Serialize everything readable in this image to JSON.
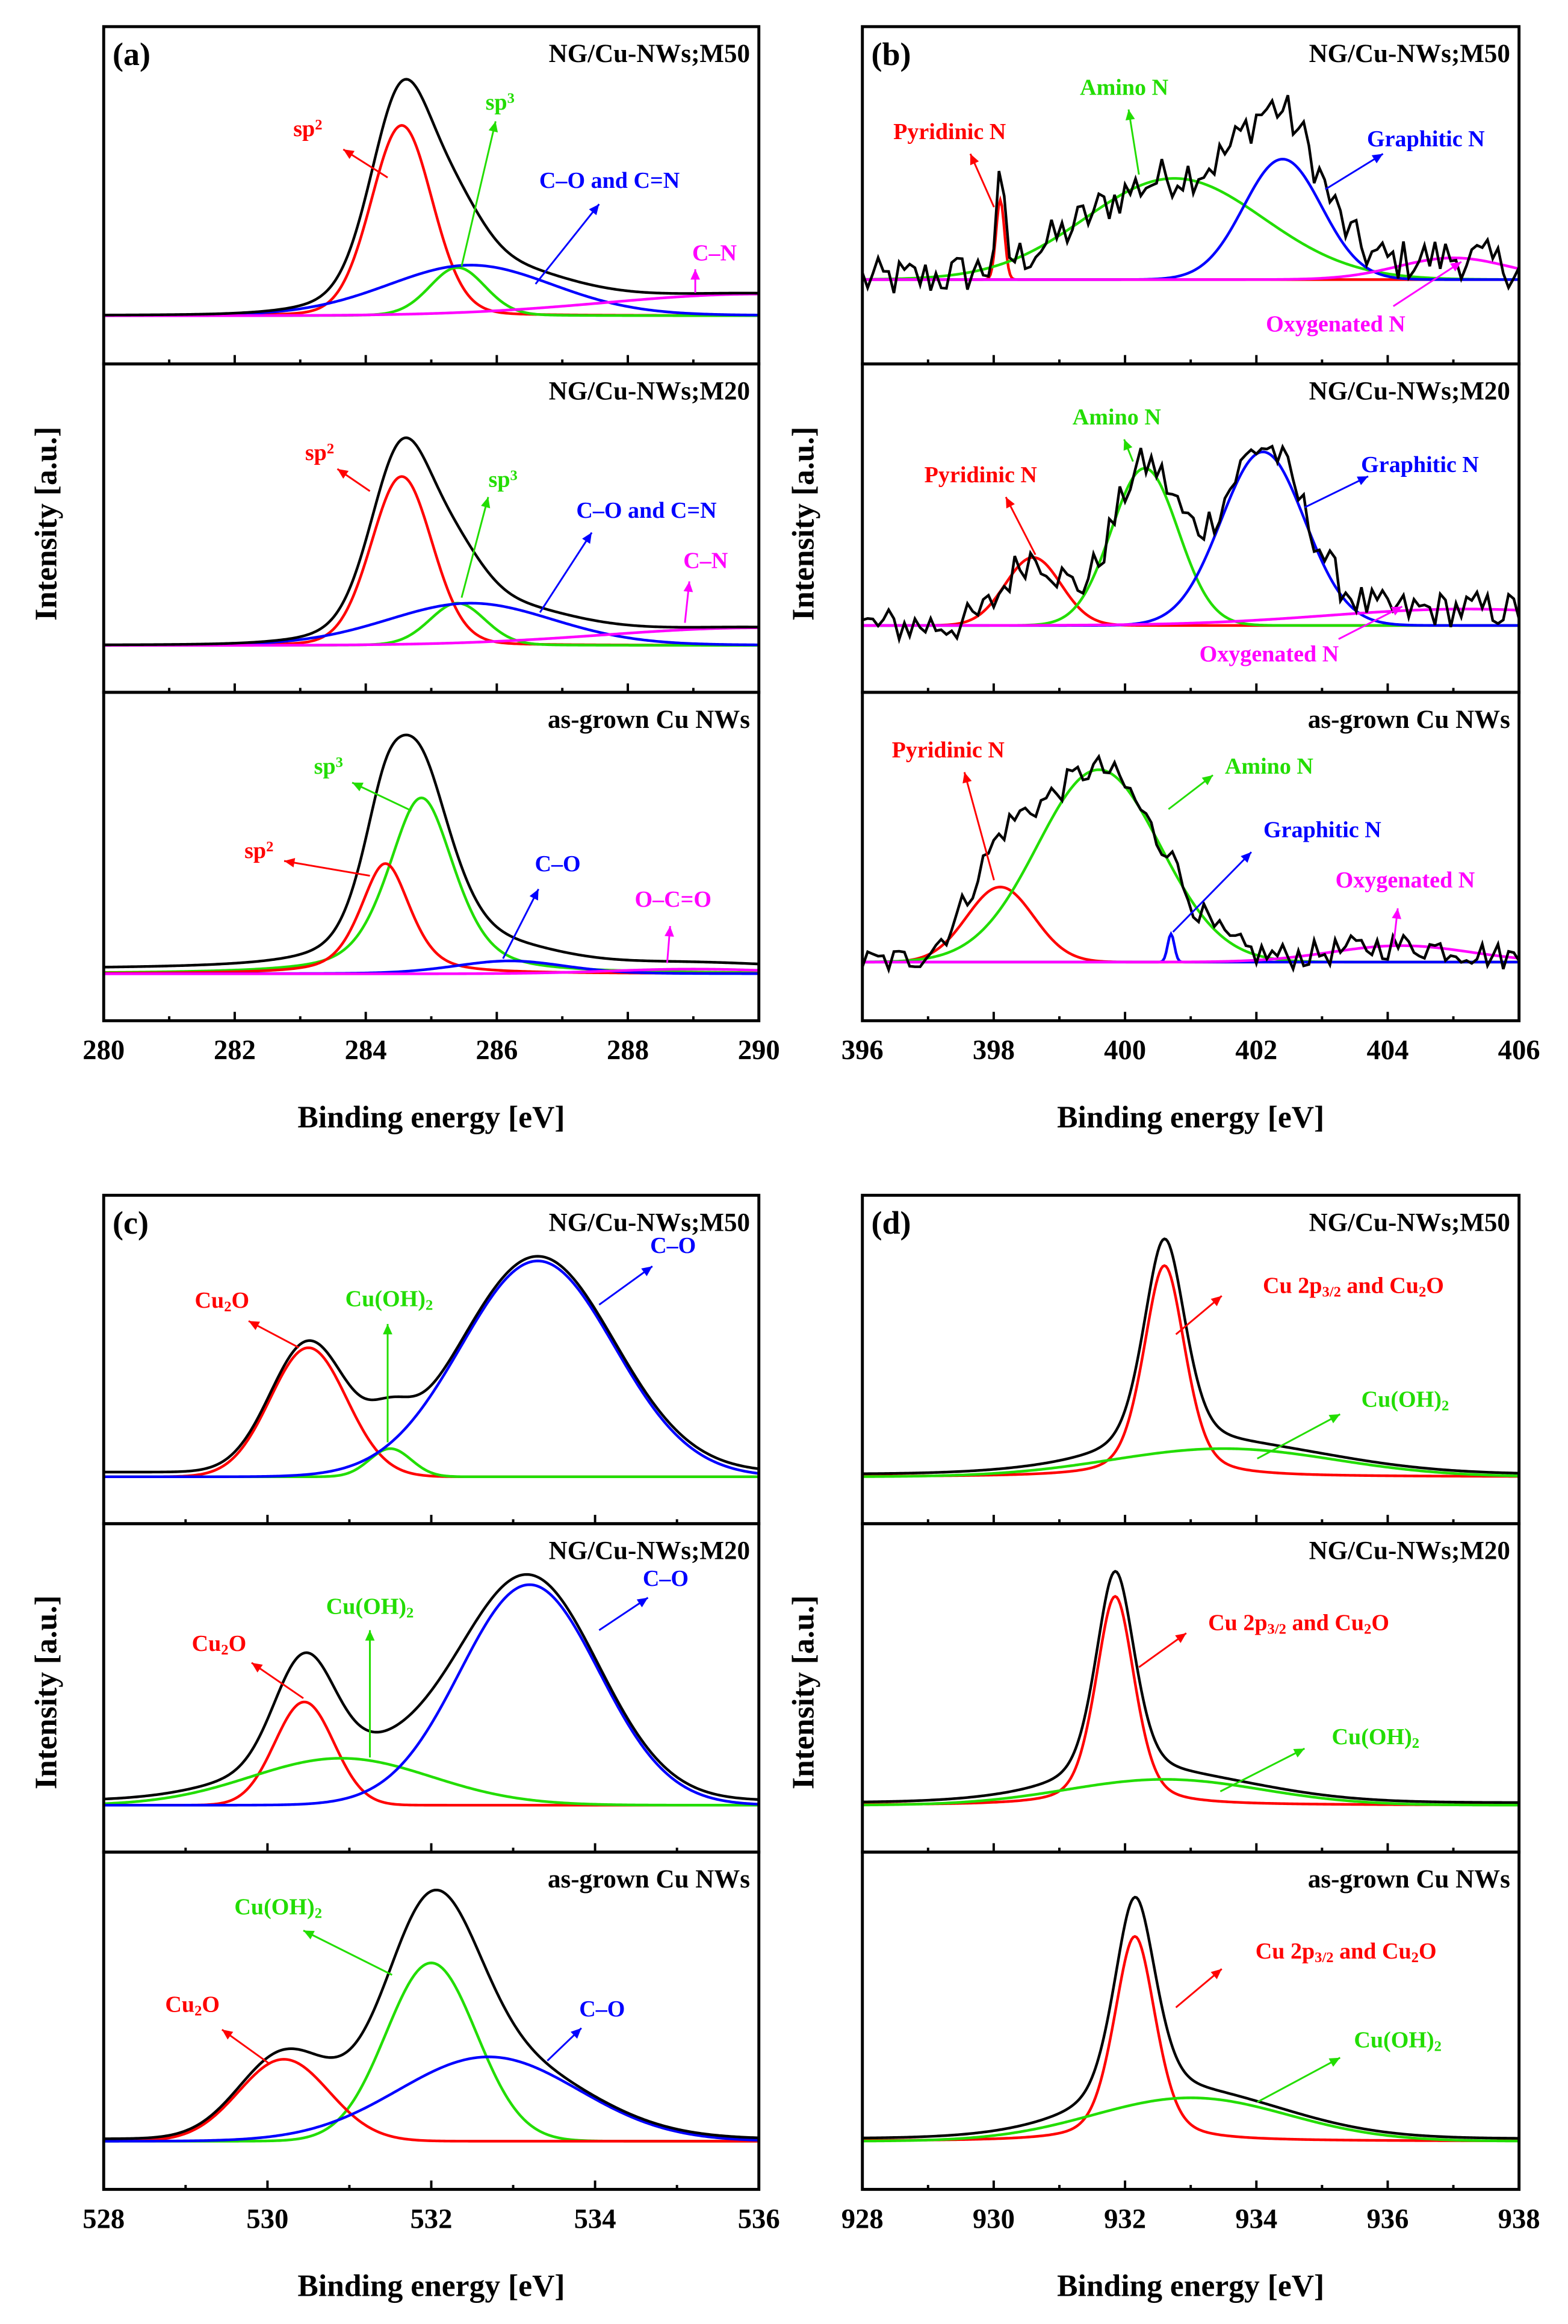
{
  "chart_data": [
    {
      "panel": "(a)",
      "type": "line",
      "xlabel": "Binding energy [eV]",
      "ylabel": "Intensity [a.u.]",
      "xlim": [
        280,
        290
      ],
      "xticks": [
        280,
        282,
        284,
        286,
        288,
        290
      ],
      "minor_step": 1,
      "ylim": [
        -0.2,
        1.2
      ],
      "grid": false,
      "subplots": [
        {
          "title": "NG/Cu-NWs;M50",
          "baseline": 0,
          "envelope_offset": 0.0,
          "noise": 0,
          "components": [
            {
              "name": "sp2",
              "label": [
                {
                  "t": "sp"
                },
                {
                  "t": "2",
                  "s": "sup"
                }
              ],
              "color": "#ff0000",
              "center": 284.55,
              "height": 0.79,
              "fwhm": 1.1,
              "eta": 0.1
            },
            {
              "name": "sp3",
              "label": [
                {
                  "t": "sp"
                },
                {
                  "t": "3",
                  "s": "sup"
                }
              ],
              "color": "#22dd00",
              "center": 285.4,
              "height": 0.2,
              "fwhm": 1.0,
              "eta": 0.1
            },
            {
              "name": "C-O and C=N",
              "label": [
                {
                  "t": "C–O and C=N"
                }
              ],
              "color": "#0000ff",
              "center": 285.6,
              "height": 0.21,
              "fwhm": 3.0,
              "eta": 0.1
            },
            {
              "name": "C-N",
              "label": [
                {
                  "t": "C–N"
                }
              ],
              "color": "#ff00ff",
              "center": 290.0,
              "height": 0.09,
              "fwhm": 5.5,
              "eta": 0
            }
          ]
        },
        {
          "title": "NG/Cu-NWs;M20",
          "baseline": 0,
          "envelope_offset": 0.0,
          "noise": 0,
          "components": [
            {
              "name": "sp2",
              "label": [
                {
                  "t": "sp"
                },
                {
                  "t": "2",
                  "s": "sup"
                }
              ],
              "color": "#ff0000",
              "center": 284.55,
              "height": 0.72,
              "fwhm": 1.1,
              "eta": 0.1
            },
            {
              "name": "sp3",
              "label": [
                {
                  "t": "sp"
                },
                {
                  "t": "3",
                  "s": "sup"
                }
              ],
              "color": "#22dd00",
              "center": 285.4,
              "height": 0.18,
              "fwhm": 1.0,
              "eta": 0.1
            },
            {
              "name": "C-O and C=N",
              "label": [
                {
                  "t": "C–O and C=N"
                }
              ],
              "color": "#0000ff",
              "center": 285.6,
              "height": 0.18,
              "fwhm": 3.0,
              "eta": 0.1
            },
            {
              "name": "C-N",
              "label": [
                {
                  "t": "C–N"
                }
              ],
              "color": "#ff00ff",
              "center": 290.0,
              "height": 0.075,
              "fwhm": 5.5,
              "eta": 0
            }
          ]
        },
        {
          "title": "as-grown Cu NWs",
          "baseline": 0,
          "envelope_offset": 0.02,
          "noise": 0,
          "components": [
            {
              "name": "sp3",
              "label": [
                {
                  "t": "sp"
                },
                {
                  "t": "3",
                  "s": "sup"
                }
              ],
              "color": "#22dd00",
              "center": 284.85,
              "height": 0.75,
              "fwhm": 1.2,
              "eta": 0.5
            },
            {
              "name": "sp2",
              "label": [
                {
                  "t": "sp"
                },
                {
                  "t": "2",
                  "s": "sup"
                }
              ],
              "color": "#ff0000",
              "center": 284.3,
              "height": 0.47,
              "fwhm": 0.9,
              "eta": 0.5
            },
            {
              "name": "C-O",
              "label": [
                {
                  "t": "C–O"
                }
              ],
              "color": "#0000ff",
              "center": 286.2,
              "height": 0.055,
              "fwhm": 2.0,
              "eta": 0.2
            },
            {
              "name": "O-C=O",
              "label": [
                {
                  "t": "O–C=O"
                }
              ],
              "color": "#ff00ff",
              "center": 289.0,
              "height": 0.02,
              "fwhm": 3.0,
              "eta": 0
            }
          ]
        }
      ]
    },
    {
      "panel": "(b)",
      "type": "line",
      "xlabel": "Binding energy [eV]",
      "ylabel": "Intensity [a.u.]",
      "xlim": [
        396,
        406
      ],
      "xticks": [
        396,
        398,
        400,
        402,
        404,
        406
      ],
      "minor_step": 1,
      "ylim": [
        -0.2,
        1.2
      ],
      "grid": false,
      "subplots": [
        {
          "title": "NG/Cu-NWs;M50",
          "baseline": 0.15,
          "envelope_offset": 0,
          "noise": 0.09,
          "components": [
            {
              "name": "Pyridinic N",
              "label": [
                {
                  "t": "Pyridinic N"
                }
              ],
              "color": "#ff0000",
              "center": 398.1,
              "height": 0.33,
              "fwhm": 0.15,
              "eta": 0
            },
            {
              "name": "Amino N",
              "label": [
                {
                  "t": "Amino N"
                }
              ],
              "color": "#22dd00",
              "center": 400.75,
              "height": 0.42,
              "fwhm": 3.2,
              "eta": 0
            },
            {
              "name": "Graphitic N",
              "label": [
                {
                  "t": "Graphitic N"
                }
              ],
              "color": "#0000ff",
              "center": 402.4,
              "height": 0.5,
              "fwhm": 1.4,
              "eta": 0
            },
            {
              "name": "Oxygenated N",
              "label": [
                {
                  "t": "Oxygenated N"
                }
              ],
              "color": "#ff00ff",
              "center": 405.0,
              "height": 0.09,
              "fwhm": 2.0,
              "eta": 0
            }
          ]
        },
        {
          "title": "NG/Cu-NWs;M20",
          "baseline": 0.085,
          "envelope_offset": 0,
          "noise": 0.08,
          "components": [
            {
              "name": "Pyridinic N",
              "label": [
                {
                  "t": "Pyridinic N"
                }
              ],
              "color": "#ff0000",
              "center": 398.6,
              "height": 0.29,
              "fwhm": 1.0,
              "eta": 0
            },
            {
              "name": "Amino N",
              "label": [
                {
                  "t": "Amino N"
                }
              ],
              "color": "#22dd00",
              "center": 400.3,
              "height": 0.67,
              "fwhm": 1.2,
              "eta": 0
            },
            {
              "name": "Graphitic N",
              "label": [
                {
                  "t": "Graphitic N"
                }
              ],
              "color": "#0000ff",
              "center": 402.1,
              "height": 0.74,
              "fwhm": 1.5,
              "eta": 0
            },
            {
              "name": "Oxygenated N",
              "label": [
                {
                  "t": "Oxygenated N"
                }
              ],
              "color": "#ff00ff",
              "center": 405.2,
              "height": 0.07,
              "fwhm": 5.0,
              "eta": 0
            }
          ]
        },
        {
          "title": "as-grown Cu NWs",
          "baseline": 0.05,
          "envelope_offset": 0,
          "noise": 0.06,
          "components": [
            {
              "name": "Pyridinic N",
              "label": [
                {
                  "t": "Pyridinic N"
                }
              ],
              "color": "#ff0000",
              "center": 398.1,
              "height": 0.32,
              "fwhm": 1.2,
              "eta": 0
            },
            {
              "name": "Amino N",
              "label": [
                {
                  "t": "Amino N"
                }
              ],
              "color": "#22dd00",
              "center": 399.6,
              "height": 0.82,
              "fwhm": 2.2,
              "eta": 0
            },
            {
              "name": "Graphitic N",
              "label": [
                {
                  "t": "Graphitic N"
                }
              ],
              "color": "#0000ff",
              "center": 400.7,
              "height": 0.12,
              "fwhm": 0.12,
              "eta": 0
            },
            {
              "name": "Oxygenated N",
              "label": [
                {
                  "t": "Oxygenated N"
                }
              ],
              "color": "#ff00ff",
              "center": 404.2,
              "height": 0.07,
              "fwhm": 2.5,
              "eta": 0
            }
          ]
        }
      ]
    },
    {
      "panel": "(c)",
      "type": "line",
      "xlabel": "Binding energy [eV]",
      "ylabel": "Intensity [a.u.]",
      "xlim": [
        528,
        536
      ],
      "xticks": [
        528,
        530,
        532,
        534,
        536
      ],
      "minor_step": 1,
      "ylim": [
        -0.2,
        1.2
      ],
      "grid": false,
      "subplots": [
        {
          "title": "NG/Cu-NWs;M50",
          "baseline": 0,
          "envelope_offset": 0.02,
          "noise": 0,
          "components": [
            {
              "name": "Cu2O",
              "label": [
                {
                  "t": "Cu"
                },
                {
                  "t": "2",
                  "s": "sub"
                },
                {
                  "t": "O"
                }
              ],
              "color": "#ff0000",
              "center": 530.5,
              "height": 0.55,
              "fwhm": 1.1,
              "eta": 0
            },
            {
              "name": "Cu(OH)2",
              "label": [
                {
                  "t": "Cu(OH)"
                },
                {
                  "t": "2",
                  "s": "sub"
                }
              ],
              "color": "#22dd00",
              "center": 531.5,
              "height": 0.12,
              "fwhm": 0.6,
              "eta": 0
            },
            {
              "name": "C-O",
              "label": [
                {
                  "t": "C–O"
                }
              ],
              "color": "#0000ff",
              "center": 533.3,
              "height": 0.92,
              "fwhm": 2.2,
              "eta": 0
            }
          ]
        },
        {
          "title": "NG/Cu-NWs;M20",
          "baseline": 0,
          "envelope_offset": 0.02,
          "noise": 0,
          "components": [
            {
              "name": "Cu2O",
              "label": [
                {
                  "t": "Cu"
                },
                {
                  "t": "2",
                  "s": "sub"
                },
                {
                  "t": "O"
                }
              ],
              "color": "#ff0000",
              "center": 530.45,
              "height": 0.44,
              "fwhm": 0.85,
              "eta": 0
            },
            {
              "name": "Cu(OH)2",
              "label": [
                {
                  "t": "Cu(OH)"
                },
                {
                  "t": "2",
                  "s": "sub"
                }
              ],
              "color": "#22dd00",
              "center": 530.9,
              "height": 0.2,
              "fwhm": 2.6,
              "eta": 0
            },
            {
              "name": "C-O",
              "label": [
                {
                  "t": "C–O"
                }
              ],
              "color": "#0000ff",
              "center": 533.2,
              "height": 0.94,
              "fwhm": 2.0,
              "eta": 0
            }
          ]
        },
        {
          "title": "as-grown Cu NWs",
          "baseline": 0,
          "envelope_offset": 0.01,
          "noise": 0,
          "components": [
            {
              "name": "Cu(OH)2",
              "label": [
                {
                  "t": "Cu(OH)"
                },
                {
                  "t": "2",
                  "s": "sub"
                }
              ],
              "color": "#22dd00",
              "center": 532.0,
              "height": 0.74,
              "fwhm": 1.3,
              "eta": 0
            },
            {
              "name": "Cu2O",
              "label": [
                {
                  "t": "Cu"
                },
                {
                  "t": "2",
                  "s": "sub"
                },
                {
                  "t": "O"
                }
              ],
              "color": "#ff0000",
              "center": 530.2,
              "height": 0.34,
              "fwhm": 1.3,
              "eta": 0
            },
            {
              "name": "C-O",
              "label": [
                {
                  "t": "C–O"
                }
              ],
              "color": "#0000ff",
              "center": 532.7,
              "height": 0.35,
              "fwhm": 2.6,
              "eta": 0
            }
          ]
        }
      ]
    },
    {
      "panel": "(d)",
      "type": "line",
      "xlabel": "Binding energy [eV]",
      "ylabel": "Intensity [a.u.]",
      "xlim": [
        928,
        938
      ],
      "xticks": [
        928,
        930,
        932,
        934,
        936,
        938
      ],
      "minor_step": 1,
      "ylim": [
        -0.2,
        1.2
      ],
      "grid": false,
      "subplots": [
        {
          "title": "NG/Cu-NWs;M50",
          "baseline": 0,
          "envelope_offset": 0.01,
          "noise": 0,
          "components": [
            {
              "name": "Cu 2p3/2 and Cu2O",
              "label": [
                {
                  "t": "Cu 2p"
                },
                {
                  "t": "3/2",
                  "s": "sub"
                },
                {
                  "t": " and Cu"
                },
                {
                  "t": "2",
                  "s": "sub"
                },
                {
                  "t": "O"
                }
              ],
              "color": "#ff0000",
              "center": 932.6,
              "height": 0.9,
              "fwhm": 0.75,
              "eta": 0.4
            },
            {
              "name": "Cu(OH)2",
              "label": [
                {
                  "t": "Cu(OH)"
                },
                {
                  "t": "2",
                  "s": "sub"
                }
              ],
              "color": "#22dd00",
              "center": 933.5,
              "height": 0.12,
              "fwhm": 4.0,
              "eta": 0
            }
          ]
        },
        {
          "title": "NG/Cu-NWs;M20",
          "baseline": 0,
          "envelope_offset": 0.01,
          "noise": 0,
          "components": [
            {
              "name": "Cu 2p3/2 and Cu2O",
              "label": [
                {
                  "t": "Cu 2p"
                },
                {
                  "t": "3/2",
                  "s": "sub"
                },
                {
                  "t": " and Cu"
                },
                {
                  "t": "2",
                  "s": "sub"
                },
                {
                  "t": "O"
                }
              ],
              "color": "#ff0000",
              "center": 931.85,
              "height": 0.89,
              "fwhm": 0.7,
              "eta": 0.4
            },
            {
              "name": "Cu(OH)2",
              "label": [
                {
                  "t": "Cu(OH)"
                },
                {
                  "t": "2",
                  "s": "sub"
                }
              ],
              "color": "#22dd00",
              "center": 932.6,
              "height": 0.11,
              "fwhm": 3.5,
              "eta": 0
            }
          ]
        },
        {
          "title": "as-grown Cu NWs",
          "baseline": 0,
          "envelope_offset": 0.01,
          "noise": 0,
          "components": [
            {
              "name": "Cu 2p3/2 and Cu2O",
              "label": [
                {
                  "t": "Cu 2p"
                },
                {
                  "t": "3/2",
                  "s": "sub"
                },
                {
                  "t": " and Cu"
                },
                {
                  "t": "2",
                  "s": "sub"
                },
                {
                  "t": "O"
                }
              ],
              "color": "#ff0000",
              "center": 932.15,
              "height": 0.85,
              "fwhm": 0.75,
              "eta": 0.4
            },
            {
              "name": "Cu(OH)2",
              "label": [
                {
                  "t": "Cu(OH)"
                },
                {
                  "t": "2",
                  "s": "sub"
                }
              ],
              "color": "#22dd00",
              "center": 933.0,
              "height": 0.18,
              "fwhm": 3.5,
              "eta": 0
            }
          ]
        }
      ]
    }
  ]
}
